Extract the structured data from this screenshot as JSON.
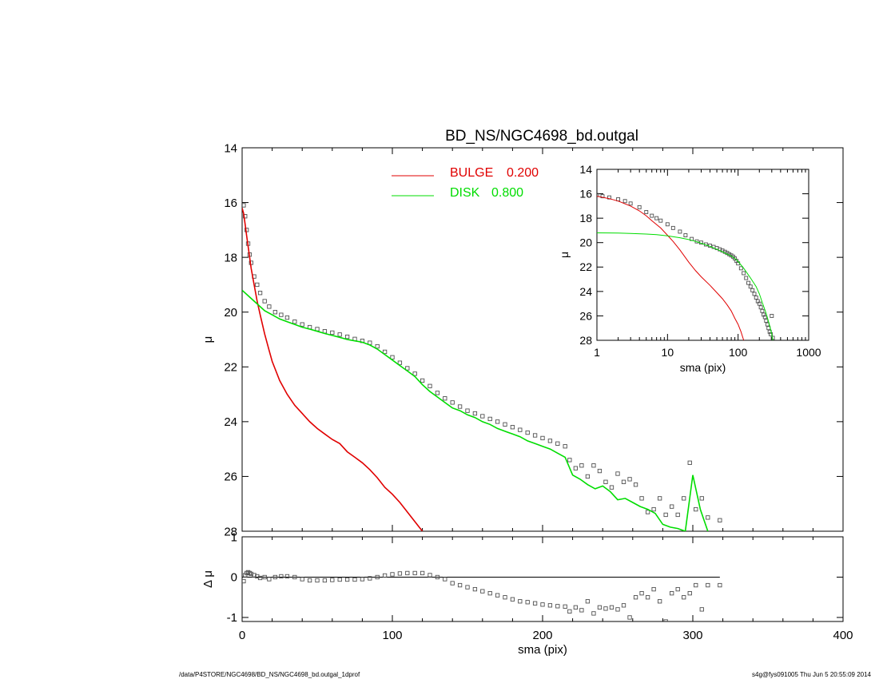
{
  "footer": {
    "left": "/data/P4STORE/NGC4698/BD_NS/NGC4698_bd.outgal_1dprof",
    "right": "s4g@fys091005  Thu Jun  5 20:55:09 2014"
  },
  "colors": {
    "data": "#505050",
    "bulge": "#e00000",
    "disk": "#00dd00",
    "axis": "#000000"
  },
  "chart_data": [
    {
      "type": "scatter",
      "title": "BD_NS/NGC4698_bd.outgal",
      "xlabel": "",
      "ylabel": "μ",
      "xlim": [
        0,
        400
      ],
      "ylim": [
        28,
        14
      ],
      "y_inverted": true,
      "xticks": [
        0,
        100,
        200,
        300,
        400
      ],
      "yticks": [
        14,
        16,
        18,
        20,
        22,
        24,
        26,
        28
      ],
      "legend_position": "top-center",
      "legend": [
        {
          "name": "BULGE",
          "value": "0.200",
          "color": "#e00000"
        },
        {
          "name": "DISK",
          "value": "0.800",
          "color": "#00dd00"
        }
      ],
      "series": [
        {
          "name": "",
          "kind": "points",
          "x": [
            1,
            2,
            3,
            4,
            5,
            6,
            8,
            10,
            12,
            15,
            18,
            22,
            26,
            30,
            35,
            40,
            45,
            50,
            55,
            60,
            65,
            70,
            75,
            80,
            85,
            90,
            95,
            100,
            105,
            110,
            115,
            120,
            125,
            130,
            135,
            140,
            145,
            150,
            155,
            160,
            165,
            170,
            175,
            180,
            185,
            190,
            195,
            200,
            205,
            210,
            215,
            218,
            222,
            226,
            230,
            234,
            238,
            242,
            246,
            250,
            254,
            258,
            262,
            266,
            270,
            274,
            278,
            282,
            286,
            290,
            294,
            298,
            302,
            306,
            310,
            318
          ],
          "y": [
            16.1,
            16.5,
            17.0,
            17.5,
            17.9,
            18.2,
            18.7,
            19.0,
            19.3,
            19.6,
            19.8,
            20.0,
            20.1,
            20.2,
            20.35,
            20.45,
            20.55,
            20.62,
            20.7,
            20.75,
            20.82,
            20.9,
            20.98,
            21.05,
            21.12,
            21.25,
            21.45,
            21.65,
            21.85,
            22.05,
            22.25,
            22.5,
            22.7,
            22.95,
            23.15,
            23.3,
            23.45,
            23.6,
            23.7,
            23.8,
            23.9,
            24.0,
            24.1,
            24.2,
            24.3,
            24.4,
            24.5,
            24.6,
            24.7,
            24.8,
            24.9,
            25.4,
            25.7,
            25.6,
            26.0,
            25.6,
            25.8,
            26.2,
            26.4,
            25.9,
            26.2,
            26.1,
            26.3,
            26.8,
            27.3,
            27.2,
            26.8,
            27.4,
            27.1,
            27.4,
            26.8,
            25.5,
            27.2,
            26.8,
            27.5,
            27.6
          ]
        },
        {
          "name": "BULGE",
          "kind": "line",
          "x": [
            0,
            1,
            2,
            3,
            4,
            5,
            6,
            8,
            10,
            12,
            15,
            18,
            20,
            25,
            30,
            35,
            40,
            45,
            50,
            55,
            60,
            65,
            70,
            75,
            80,
            85,
            90,
            95,
            100,
            105,
            110,
            115,
            120
          ],
          "y": [
            16.2,
            16.4,
            16.8,
            17.2,
            17.6,
            18.0,
            18.4,
            19.0,
            19.6,
            20.1,
            20.8,
            21.4,
            21.8,
            22.5,
            23.0,
            23.4,
            23.7,
            24.0,
            24.25,
            24.45,
            24.65,
            24.8,
            25.1,
            25.3,
            25.5,
            25.75,
            26.05,
            26.4,
            26.65,
            26.95,
            27.3,
            27.65,
            28.0
          ]
        },
        {
          "name": "DISK",
          "kind": "line",
          "x": [
            0,
            5,
            10,
            15,
            20,
            25,
            30,
            35,
            40,
            45,
            50,
            55,
            60,
            65,
            70,
            75,
            80,
            85,
            90,
            95,
            100,
            105,
            110,
            115,
            120,
            125,
            130,
            135,
            140,
            145,
            150,
            155,
            160,
            165,
            170,
            175,
            180,
            185,
            190,
            195,
            200,
            205,
            210,
            215,
            220,
            225,
            230,
            235,
            240,
            245,
            250,
            255,
            260,
            265,
            270,
            275,
            280,
            285,
            290,
            295,
            300,
            305,
            310
          ],
          "y": [
            19.2,
            19.45,
            19.7,
            19.95,
            20.1,
            20.25,
            20.35,
            20.45,
            20.55,
            20.62,
            20.7,
            20.78,
            20.85,
            20.92,
            21.0,
            21.05,
            21.1,
            21.2,
            21.35,
            21.55,
            21.75,
            21.95,
            22.15,
            22.35,
            22.65,
            22.9,
            23.1,
            23.3,
            23.5,
            23.6,
            23.75,
            23.85,
            24.0,
            24.1,
            24.25,
            24.35,
            24.45,
            24.55,
            24.7,
            24.8,
            24.9,
            25.0,
            25.15,
            25.3,
            25.95,
            26.1,
            26.3,
            26.45,
            26.35,
            26.55,
            26.85,
            26.8,
            26.95,
            27.1,
            27.2,
            27.35,
            27.75,
            27.85,
            27.9,
            28.0,
            25.95,
            27.2,
            28.0
          ]
        }
      ]
    },
    {
      "type": "scatter",
      "title": "",
      "xlabel": "sma (pix)",
      "ylabel": "Δ μ",
      "xlim": [
        0,
        400
      ],
      "ylim": [
        -1.1,
        1.0
      ],
      "xticks": [
        0,
        100,
        200,
        300,
        400
      ],
      "yticks": [
        -1,
        0,
        1
      ],
      "reference_line": {
        "y": 0,
        "x_range": [
          0,
          318
        ]
      },
      "series": [
        {
          "name": "",
          "kind": "points",
          "x": [
            1,
            2,
            3,
            4,
            5,
            6,
            8,
            10,
            12,
            15,
            18,
            22,
            26,
            30,
            35,
            40,
            45,
            50,
            55,
            60,
            65,
            70,
            75,
            80,
            85,
            90,
            95,
            100,
            105,
            110,
            115,
            120,
            125,
            130,
            135,
            140,
            145,
            150,
            155,
            160,
            165,
            170,
            175,
            180,
            185,
            190,
            195,
            200,
            205,
            210,
            215,
            218,
            222,
            226,
            230,
            234,
            238,
            242,
            246,
            250,
            254,
            258,
            262,
            266,
            270,
            274,
            278,
            282,
            286,
            290,
            294,
            298,
            302,
            306,
            310,
            318
          ],
          "y": [
            -0.1,
            0.05,
            0.1,
            0.12,
            0.1,
            0.08,
            0.05,
            0.02,
            -0.02,
            0.0,
            -0.05,
            0.0,
            0.02,
            0.02,
            0.0,
            -0.05,
            -0.08,
            -0.08,
            -0.08,
            -0.07,
            -0.06,
            -0.06,
            -0.06,
            -0.05,
            -0.03,
            0.0,
            0.04,
            0.07,
            0.09,
            0.1,
            0.1,
            0.1,
            0.05,
            0.0,
            -0.05,
            -0.15,
            -0.2,
            -0.25,
            -0.3,
            -0.35,
            -0.4,
            -0.45,
            -0.5,
            -0.55,
            -0.6,
            -0.62,
            -0.65,
            -0.68,
            -0.7,
            -0.72,
            -0.73,
            -0.85,
            -0.75,
            -0.82,
            -0.6,
            -0.9,
            -0.75,
            -0.78,
            -0.75,
            -0.8,
            -0.7,
            -1.0,
            -0.5,
            -0.4,
            -0.5,
            -0.3,
            -0.6,
            -1.1,
            -0.4,
            -0.3,
            -0.5,
            -0.4,
            -0.2,
            -0.8,
            -0.2,
            -0.2
          ]
        }
      ]
    },
    {
      "type": "scatter",
      "title": "",
      "xlabel": "sma (pix)",
      "ylabel": "μ",
      "x_scale": "log",
      "xlim": [
        1,
        1000
      ],
      "ylim": [
        28,
        14
      ],
      "y_inverted": true,
      "xticks": [
        1,
        10,
        100,
        1000
      ],
      "xtick_labels": [
        "1",
        "10",
        "100",
        "1000"
      ],
      "yticks": [
        14,
        16,
        18,
        20,
        22,
        24,
        26,
        28
      ],
      "series": [
        {
          "name": "",
          "kind": "points",
          "x": [
            1,
            1.2,
            1.5,
            2,
            2.5,
            3,
            4,
            5,
            6,
            7,
            8,
            10,
            12,
            15,
            18,
            22,
            26,
            30,
            35,
            40,
            45,
            50,
            55,
            60,
            65,
            70,
            75,
            80,
            85,
            90,
            95,
            100,
            110,
            120,
            130,
            140,
            150,
            160,
            170,
            180,
            190,
            200,
            210,
            220,
            230,
            240,
            250,
            260,
            270,
            280,
            290,
            300,
            310
          ],
          "y": [
            16.1,
            16.2,
            16.3,
            16.45,
            16.6,
            16.8,
            17.1,
            17.5,
            17.8,
            18.0,
            18.2,
            18.5,
            18.8,
            19.1,
            19.4,
            19.7,
            19.9,
            20.0,
            20.15,
            20.25,
            20.35,
            20.45,
            20.55,
            20.65,
            20.75,
            20.85,
            20.95,
            21.05,
            21.15,
            21.3,
            21.5,
            21.7,
            22.1,
            22.5,
            22.9,
            23.3,
            23.6,
            23.9,
            24.2,
            24.5,
            24.8,
            25.0,
            25.3,
            25.6,
            25.9,
            26.1,
            26.4,
            26.7,
            27.0,
            27.3,
            27.5,
            26.0,
            27.8
          ]
        },
        {
          "name": "BULGE",
          "kind": "line",
          "x": [
            1,
            1.5,
            2,
            3,
            4,
            5,
            6,
            8,
            10,
            12,
            15,
            20,
            25,
            30,
            40,
            50,
            60,
            70,
            80,
            90,
            100,
            110,
            120
          ],
          "y": [
            16.2,
            16.4,
            16.6,
            17.0,
            17.4,
            17.8,
            18.2,
            18.8,
            19.4,
            19.9,
            20.6,
            21.6,
            22.3,
            22.8,
            23.5,
            24.1,
            24.6,
            25.1,
            25.6,
            26.2,
            26.7,
            27.3,
            28.0
          ]
        },
        {
          "name": "DISK",
          "kind": "line",
          "x": [
            1,
            2,
            3,
            5,
            7,
            10,
            15,
            20,
            25,
            30,
            40,
            50,
            60,
            70,
            80,
            90,
            100,
            120,
            150,
            180,
            200,
            220,
            250,
            280,
            300,
            310
          ],
          "y": [
            19.2,
            19.22,
            19.25,
            19.3,
            19.35,
            19.45,
            19.6,
            19.75,
            19.9,
            20.05,
            20.3,
            20.55,
            20.75,
            20.95,
            21.1,
            21.3,
            21.55,
            22.1,
            22.9,
            23.6,
            24.2,
            24.9,
            25.8,
            26.8,
            27.5,
            28.0
          ]
        }
      ]
    }
  ]
}
